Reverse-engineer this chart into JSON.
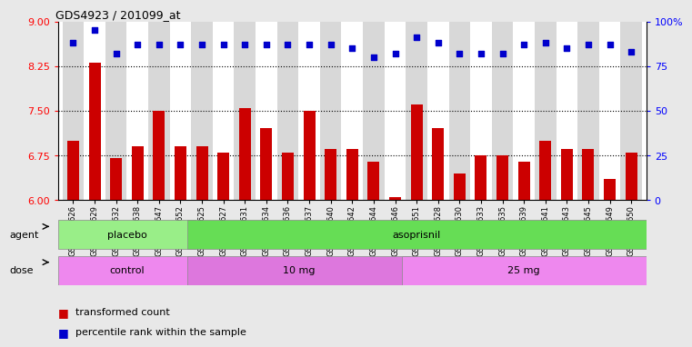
{
  "title": "GDS4923 / 201099_at",
  "samples": [
    "GSM1152626",
    "GSM1152629",
    "GSM1152632",
    "GSM1152638",
    "GSM1152647",
    "GSM1152652",
    "GSM1152625",
    "GSM1152627",
    "GSM1152631",
    "GSM1152634",
    "GSM1152636",
    "GSM1152637",
    "GSM1152640",
    "GSM1152642",
    "GSM1152644",
    "GSM1152646",
    "GSM1152651",
    "GSM1152628",
    "GSM1152630",
    "GSM1152633",
    "GSM1152635",
    "GSM1152639",
    "GSM1152641",
    "GSM1152643",
    "GSM1152645",
    "GSM1152649",
    "GSM1152650"
  ],
  "bar_values": [
    7.0,
    8.3,
    6.7,
    6.9,
    7.5,
    6.9,
    6.9,
    6.8,
    7.55,
    7.2,
    6.8,
    7.5,
    6.85,
    6.85,
    6.65,
    6.05,
    7.6,
    7.2,
    6.45,
    6.75,
    6.75,
    6.65,
    7.0,
    6.85,
    6.85,
    6.35,
    6.8
  ],
  "percentile_values": [
    88,
    95,
    82,
    87,
    87,
    87,
    87,
    87,
    87,
    87,
    87,
    87,
    87,
    85,
    80,
    82,
    91,
    88,
    82,
    82,
    82,
    87,
    88,
    85,
    87,
    87,
    83
  ],
  "bar_color": "#cc0000",
  "dot_color": "#0000cc",
  "ylim_left": [
    6,
    9
  ],
  "ylim_right": [
    0,
    100
  ],
  "yticks_left": [
    6,
    6.75,
    7.5,
    8.25,
    9
  ],
  "yticks_right": [
    0,
    25,
    50,
    75,
    100
  ],
  "ytick_labels_right": [
    "0",
    "25",
    "50",
    "75",
    "100%"
  ],
  "hlines": [
    6.75,
    7.5,
    8.25
  ],
  "agent_groups": [
    {
      "label": "placebo",
      "start": 0,
      "end": 6,
      "color": "#99ee88"
    },
    {
      "label": "asoprisnil",
      "start": 6,
      "end": 27,
      "color": "#66dd55"
    }
  ],
  "dose_groups": [
    {
      "label": "control",
      "start": 0,
      "end": 6,
      "color": "#ee88ee"
    },
    {
      "label": "10 mg",
      "start": 6,
      "end": 16,
      "color": "#dd77dd"
    },
    {
      "label": "25 mg",
      "start": 16,
      "end": 27,
      "color": "#ee88ee"
    }
  ],
  "bg_color": "#e8e8e8",
  "plot_bg": "#ffffff",
  "col_alt_color": "#d8d8d8"
}
